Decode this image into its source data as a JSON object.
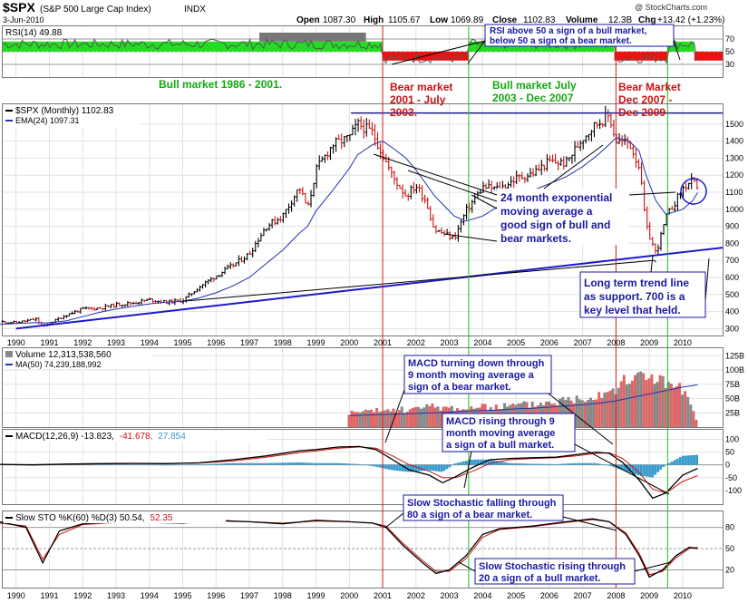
{
  "header": {
    "symbol": "$SPX",
    "index_name": "(S&P 500 Large Cap Index)",
    "exchange": "INDX",
    "date": "3-Jun-2010",
    "watermark": "@ StockCharts.com",
    "quote": {
      "open_label": "Open",
      "open": "1087.30",
      "high_label": "High",
      "high": "1105.67",
      "low_label": "Low",
      "low": "1069.89",
      "close_label": "Close",
      "close": "1102.83",
      "volume_label": "Volume",
      "volume": "12.3B",
      "chg_label": "Chg",
      "chg": "+13.42 (+1.23%)"
    }
  },
  "years": [
    "1990",
    "1991",
    "1992",
    "1993",
    "1994",
    "1995",
    "1996",
    "1997",
    "1998",
    "1999",
    "2000",
    "2001",
    "2002",
    "2003",
    "2004",
    "2005",
    "2006",
    "2007",
    "2008",
    "2009",
    "2010"
  ],
  "markers": {
    "red_years": [
      2001.0,
      2008.0
    ],
    "green_years": [
      2003.58,
      2009.55
    ]
  },
  "colors": {
    "red_line": "#cc2222",
    "green_line": "#22bb22",
    "annotation_text": "#1a1aa0",
    "trend_line": "#1a1acc",
    "ema_line": "#2233aa",
    "bull_fill": "#22dd22",
    "bear_fill": "#ee1111",
    "price_up": "#000000",
    "price_down": "#cc1111",
    "volume_up": "#888888",
    "volume_down": "#dd6666",
    "macd_hist": "#3399cc",
    "header_bg": "#ffffff"
  },
  "rsi_panel": {
    "label": "RSI(14) 49.88",
    "levels": [
      "70",
      "50",
      "30"
    ],
    "regimes": [
      {
        "start": 1989.6,
        "end": 2001.0,
        "state": "bull"
      },
      {
        "start": 2001.0,
        "end": 2003.58,
        "state": "bear"
      },
      {
        "start": 2003.58,
        "end": 2007.95,
        "state": "bull"
      },
      {
        "start": 2007.95,
        "end": 2009.55,
        "state": "bear"
      },
      {
        "start": 2009.55,
        "end": 2010.35,
        "state": "bull"
      },
      {
        "start": 2010.35,
        "end": 2011.2,
        "state": "bear"
      }
    ]
  },
  "annotations": {
    "rsi_note": [
      "RSI above 50 a sign of a bull market,",
      "below 50 a sign of a bear market."
    ],
    "bull_1": "Bull market 1986 - 2001.",
    "bear_1": [
      "Bear market",
      "2001 - July",
      "2003."
    ],
    "bull_2": [
      "Bull market July",
      "2003 - Dec 2007"
    ],
    "bear_2": [
      "Bear Market",
      "Dec 2007 -",
      "Dec 2009"
    ],
    "ema_note": [
      "24 month exponential",
      "moving average a",
      "good sign of bull and",
      "bear markets."
    ],
    "trend_note": [
      "Long term trend line",
      "as support. 700 is a",
      "key level that held."
    ],
    "macd_down": [
      "MACD turning down through",
      "9 month moving average a",
      "sign of a bear market."
    ],
    "macd_up": [
      "MACD rising through 9",
      "month moving average",
      "a sign of a bull market."
    ],
    "sto_down": [
      "Slow Stochastic falling through",
      "80 a sign of a bear market."
    ],
    "sto_up": [
      "Slow Stochastic rising through",
      "20 a sign of a bull market."
    ]
  },
  "chart_data": [
    {
      "type": "line",
      "title": "$SPX (Monthly) 1102.83",
      "legend": [
        "$SPX (Monthly) 1102.83",
        "EMA(24) 1097.31"
      ],
      "x": [
        1989.5,
        1990.0,
        1990.6,
        1990.8,
        1991.0,
        1991.5,
        1992.0,
        1992.5,
        1993.0,
        1993.5,
        1994.0,
        1994.5,
        1995.0,
        1995.5,
        1996.0,
        1996.5,
        1997.0,
        1997.5,
        1998.0,
        1998.5,
        1998.75,
        1999.0,
        1999.5,
        2000.0,
        2000.25,
        2000.7,
        2001.0,
        2001.3,
        2001.7,
        2002.0,
        2002.3,
        2002.55,
        2002.8,
        2003.15,
        2003.5,
        2004.0,
        2004.5,
        2005.0,
        2005.5,
        2006.0,
        2006.5,
        2007.0,
        2007.4,
        2007.8,
        2008.0,
        2008.4,
        2008.7,
        2008.9,
        2009.2,
        2009.5,
        2010.0,
        2010.3,
        2010.45
      ],
      "series": [
        {
          "name": "$SPX",
          "values": [
            340,
            335,
            355,
            310,
            330,
            380,
            415,
            420,
            440,
            450,
            470,
            455,
            465,
            545,
            610,
            670,
            740,
            900,
            960,
            1130,
            1000,
            1230,
            1380,
            1420,
            1500,
            1450,
            1320,
            1190,
            1080,
            1140,
            1050,
            880,
            860,
            830,
            990,
            1130,
            1120,
            1180,
            1210,
            1280,
            1270,
            1420,
            1500,
            1550,
            1400,
            1390,
            1250,
            900,
            740,
            950,
            1120,
            1170,
            1100
          ]
        },
        {
          "name": "EMA(24)",
          "values": [
            325,
            330,
            335,
            333,
            335,
            345,
            370,
            395,
            415,
            430,
            445,
            455,
            460,
            480,
            510,
            550,
            600,
            680,
            760,
            860,
            900,
            990,
            1110,
            1240,
            1320,
            1380,
            1400,
            1360,
            1300,
            1230,
            1150,
            1080,
            1030,
            960,
            930,
            960,
            1020,
            1080,
            1110,
            1150,
            1190,
            1250,
            1310,
            1380,
            1420,
            1400,
            1340,
            1200,
            1050,
            970,
            1000,
            1050,
            1097
          ]
        }
      ],
      "yticks": [
        "300",
        "400",
        "500",
        "600",
        "700",
        "800",
        "900",
        "1000",
        "1100",
        "1200",
        "1300",
        "1400",
        "1500"
      ],
      "trendline": {
        "x": [
          1990.0,
          2011.2
        ],
        "y": [
          300,
          775
        ]
      },
      "resistance": {
        "x": [
          2000.05,
          2011.2
        ],
        "y": [
          1565,
          1565
        ]
      }
    },
    {
      "type": "bar",
      "title": "Volume 12,313,538,560",
      "legend": [
        "Volume 12,313,538,560",
        "MA(50) 74,239,188,992"
      ],
      "x": [
        2000.0,
        2000.5,
        2001.0,
        2001.5,
        2002.0,
        2002.5,
        2003.0,
        2003.5,
        2004.0,
        2004.5,
        2005.0,
        2005.5,
        2006.0,
        2006.5,
        2007.0,
        2007.5,
        2008.0,
        2008.5,
        2009.0,
        2009.5,
        2010.0,
        2010.45
      ],
      "values": [
        25,
        27,
        29,
        30,
        32,
        36,
        34,
        33,
        34,
        36,
        38,
        40,
        44,
        48,
        52,
        60,
        70,
        85,
        95,
        75,
        65,
        12
      ],
      "ma_values": [
        20,
        21,
        22,
        23,
        24,
        25,
        26,
        28,
        29,
        30,
        32,
        33,
        35,
        37,
        39,
        42,
        46,
        52,
        58,
        64,
        70,
        74
      ],
      "yticks": [
        "25B",
        "50B",
        "75B",
        "100B",
        "125B"
      ]
    },
    {
      "type": "line",
      "title": "MACD(12,26,9) -13.823, -41.678, 27.854",
      "legend_parts": [
        "MACD(12,26,9) -13.823,",
        "-41.678,",
        "27.854"
      ],
      "x": [
        1989.5,
        1990.5,
        1991.5,
        1992.5,
        1993.5,
        1994.5,
        1995.5,
        1996.5,
        1997.5,
        1998.5,
        1999.0,
        1999.7,
        2000.3,
        2000.8,
        2001.3,
        2001.8,
        2002.4,
        2002.8,
        2003.2,
        2003.7,
        2004.2,
        2004.8,
        2005.5,
        2006.2,
        2006.8,
        2007.4,
        2007.8,
        2008.2,
        2008.7,
        2009.1,
        2009.5,
        2010.0,
        2010.45
      ],
      "series": [
        {
          "name": "MACD",
          "values": [
            2,
            0,
            3,
            5,
            6,
            5,
            8,
            20,
            35,
            55,
            60,
            70,
            72,
            60,
            20,
            -20,
            -40,
            -70,
            -45,
            -10,
            20,
            25,
            28,
            30,
            40,
            50,
            45,
            10,
            -60,
            -130,
            -110,
            -40,
            -14
          ]
        },
        {
          "name": "Signal",
          "values": [
            1,
            1,
            2,
            4,
            5,
            5,
            7,
            15,
            30,
            48,
            55,
            65,
            70,
            65,
            35,
            0,
            -25,
            -50,
            -50,
            -25,
            5,
            20,
            25,
            28,
            35,
            45,
            47,
            25,
            -30,
            -95,
            -110,
            -65,
            -42
          ]
        }
      ],
      "yticks": [
        "100",
        "50",
        "0",
        "-50",
        "-100"
      ]
    },
    {
      "type": "line",
      "title": "Slow STO %K(60) %D(3) 50.54, 52.35",
      "legend_parts": [
        "Slow STO %K(60) %D(3) 50.54,",
        "52.35"
      ],
      "x": [
        1989.5,
        1990.3,
        1990.8,
        1991.3,
        1992.0,
        1993.0,
        1994.0,
        1995.0,
        1996.0,
        1997.0,
        1998.0,
        1999.0,
        2000.0,
        2000.7,
        2001.1,
        2001.6,
        2002.2,
        2002.6,
        2003.0,
        2003.5,
        2004.0,
        2004.5,
        2005.5,
        2006.5,
        2007.3,
        2007.8,
        2008.3,
        2008.7,
        2009.0,
        2009.4,
        2009.8,
        2010.2,
        2010.45
      ],
      "series": [
        {
          "name": "%K",
          "values": [
            88,
            80,
            30,
            75,
            85,
            88,
            87,
            86,
            90,
            88,
            85,
            90,
            88,
            86,
            80,
            55,
            30,
            15,
            20,
            40,
            70,
            78,
            82,
            88,
            92,
            88,
            70,
            40,
            10,
            20,
            40,
            52,
            50
          ]
        },
        {
          "name": "%D",
          "values": [
            86,
            82,
            35,
            70,
            84,
            87,
            87,
            86,
            89,
            88,
            86,
            89,
            88,
            86,
            82,
            58,
            33,
            18,
            18,
            36,
            66,
            77,
            81,
            87,
            91,
            88,
            72,
            43,
            13,
            18,
            37,
            50,
            52
          ]
        }
      ],
      "yticks": [
        "80",
        "50",
        "20"
      ]
    }
  ]
}
